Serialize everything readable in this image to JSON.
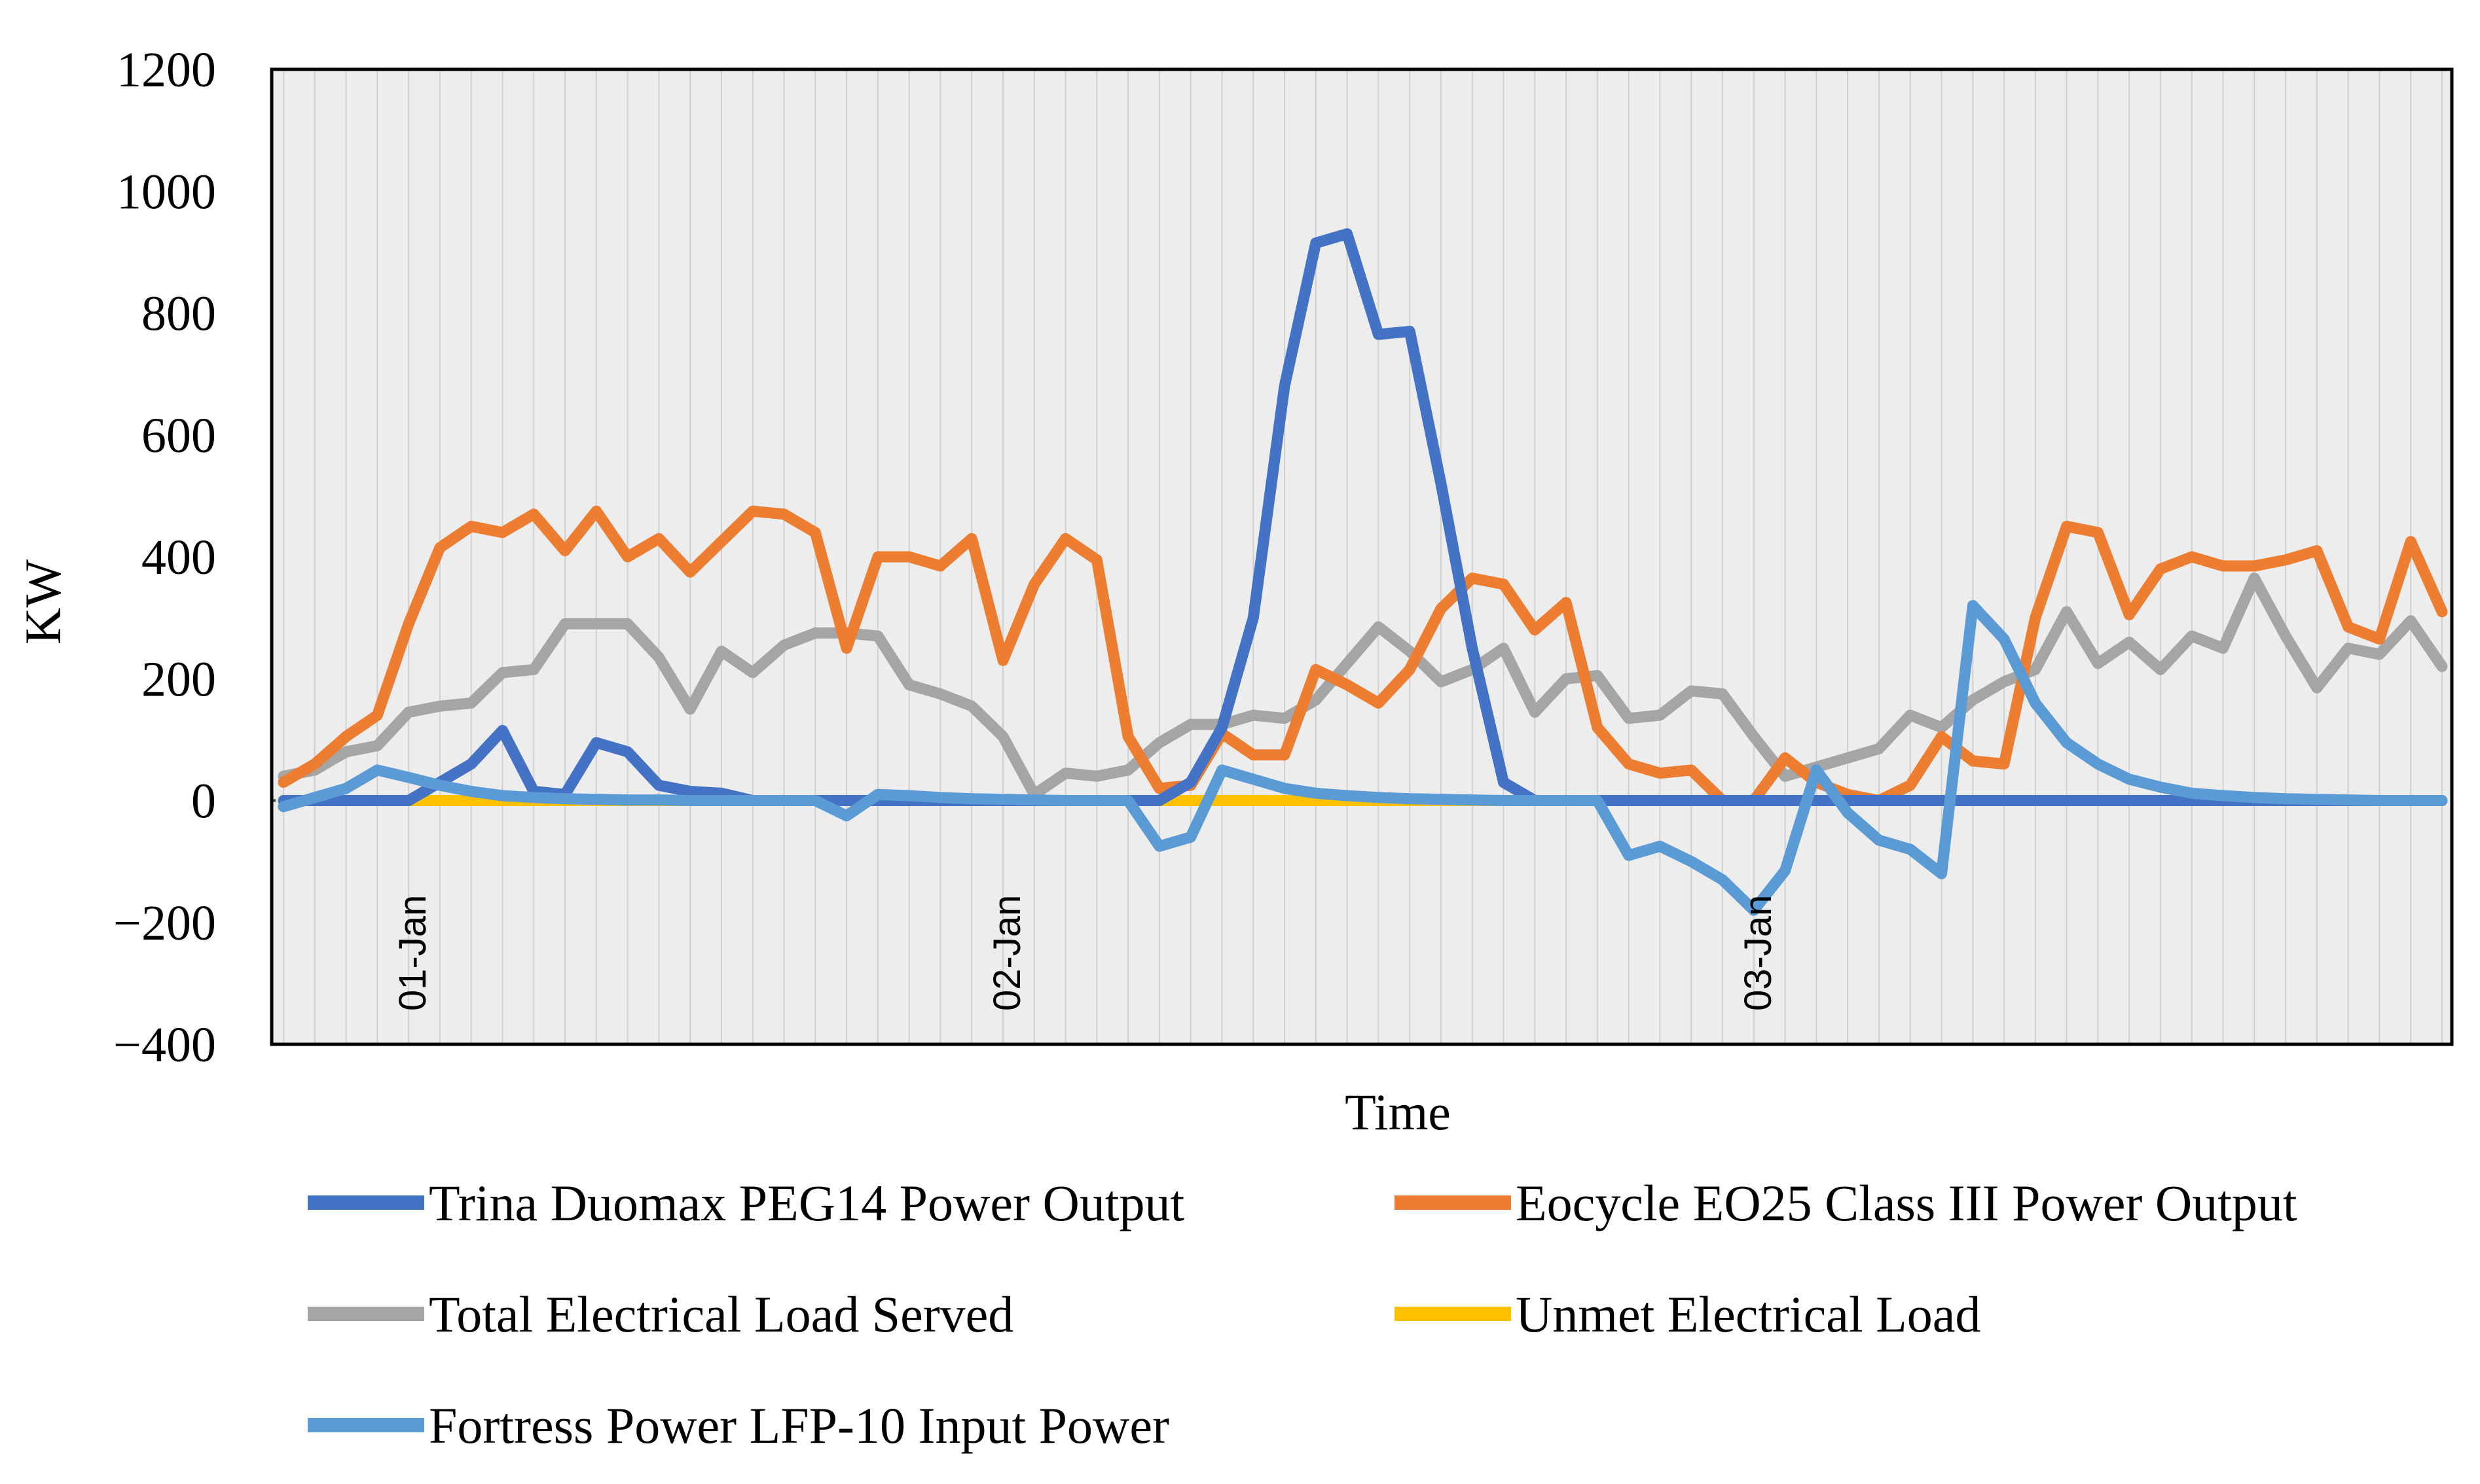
{
  "chart_data": {
    "type": "line",
    "title": "",
    "xlabel": "Time",
    "ylabel": "KW",
    "ylim": [
      -400,
      1200
    ],
    "yticks": [
      -400,
      -200,
      0,
      200,
      400,
      600,
      800,
      1000,
      1200
    ],
    "ytick_labels": [
      "−400",
      "−200",
      "0",
      "200",
      "400",
      "600",
      "800",
      "1000",
      "1200"
    ],
    "x_count": 70,
    "date_labels": [
      {
        "label": "01-Jan",
        "index": 4
      },
      {
        "label": "02-Jan",
        "index": 23
      },
      {
        "label": "03-Jan",
        "index": 47
      }
    ],
    "grid": "vertical",
    "legend_position": "bottom",
    "series": [
      {
        "name": "Trina Duomax PEG14 Power Output",
        "color": "#4472C4",
        "values": [
          0,
          0,
          0,
          0,
          0,
          30,
          60,
          115,
          15,
          10,
          95,
          80,
          25,
          15,
          12,
          0,
          0,
          0,
          0,
          0,
          0,
          0,
          0,
          0,
          0,
          0,
          0,
          0,
          0,
          30,
          120,
          300,
          680,
          915,
          930,
          765,
          770,
          520,
          250,
          30,
          0,
          0,
          0,
          0,
          0,
          0,
          0,
          0,
          0,
          0,
          0,
          0,
          0,
          0,
          0,
          0,
          0,
          0,
          0,
          0,
          0,
          0,
          0,
          0,
          0,
          0,
          0,
          0,
          0,
          0
        ]
      },
      {
        "name": "Eocycle EO25 Class III Power Output",
        "color": "#ED7D31",
        "values": [
          30,
          60,
          105,
          140,
          290,
          415,
          450,
          440,
          470,
          410,
          475,
          400,
          430,
          375,
          425,
          475,
          470,
          440,
          250,
          400,
          400,
          385,
          430,
          230,
          355,
          430,
          395,
          105,
          20,
          25,
          110,
          75,
          75,
          215,
          190,
          160,
          215,
          315,
          365,
          355,
          280,
          325,
          120,
          60,
          45,
          50,
          0,
          0,
          70,
          30,
          10,
          0,
          25,
          105,
          65,
          60,
          300,
          450,
          440,
          305,
          380,
          400,
          385,
          385,
          395,
          410,
          285,
          265,
          425,
          310
        ]
      },
      {
        "name": "Total Electrical Load Served",
        "color": "#A5A5A5",
        "values": [
          40,
          50,
          80,
          90,
          145,
          155,
          160,
          210,
          215,
          290,
          290,
          290,
          235,
          150,
          245,
          210,
          255,
          275,
          275,
          270,
          190,
          175,
          155,
          105,
          10,
          45,
          40,
          50,
          95,
          125,
          125,
          140,
          135,
          165,
          225,
          285,
          245,
          195,
          215,
          250,
          145,
          200,
          205,
          135,
          140,
          180,
          175,
          105,
          40,
          55,
          70,
          85,
          140,
          120,
          165,
          195,
          215,
          310,
          225,
          260,
          215,
          270,
          250,
          365,
          270,
          185,
          250,
          240,
          295,
          220
        ]
      },
      {
        "name": "Unmet Electrical Load",
        "color": "#FFC000",
        "values": [
          0,
          0,
          0,
          0,
          0,
          0,
          0,
          0,
          0,
          0,
          0,
          0,
          0,
          0,
          0,
          0,
          0,
          0,
          0,
          0,
          0,
          0,
          0,
          0,
          0,
          0,
          0,
          0,
          0,
          0,
          0,
          0,
          0,
          0,
          0,
          0,
          0,
          0,
          0,
          0,
          0,
          0,
          0,
          0,
          0,
          0,
          0,
          0,
          0,
          0,
          0,
          0,
          0,
          0,
          0,
          0,
          0,
          0,
          0,
          0,
          0,
          0,
          0,
          0,
          0,
          0,
          0,
          0,
          0,
          0
        ]
      },
      {
        "name": "Fortress Power LFP-10 Input Power",
        "color": "#5B9BD5",
        "values": [
          -10,
          5,
          20,
          50,
          38,
          25,
          15,
          8,
          5,
          3,
          2,
          1,
          1,
          0,
          0,
          0,
          0,
          0,
          -25,
          10,
          8,
          5,
          3,
          2,
          1,
          0,
          0,
          0,
          -75,
          -60,
          50,
          35,
          20,
          12,
          8,
          5,
          3,
          2,
          1,
          0,
          0,
          0,
          0,
          -90,
          -75,
          -100,
          -130,
          -180,
          -115,
          50,
          -20,
          -65,
          -80,
          -120,
          320,
          265,
          160,
          95,
          60,
          35,
          22,
          12,
          8,
          5,
          3,
          2,
          1,
          0,
          0,
          0
        ]
      }
    ]
  },
  "legend": {
    "items": [
      {
        "label": "Trina Duomax PEG14 Power Output",
        "color": "#4472C4"
      },
      {
        "label": "Eocycle EO25 Class III Power Output",
        "color": "#ED7D31"
      },
      {
        "label": "Total Electrical Load Served",
        "color": "#A5A5A5"
      },
      {
        "label": "Unmet Electrical Load",
        "color": "#FFC000"
      },
      {
        "label": "Fortress Power LFP-10 Input Power",
        "color": "#5B9BD5"
      }
    ]
  }
}
